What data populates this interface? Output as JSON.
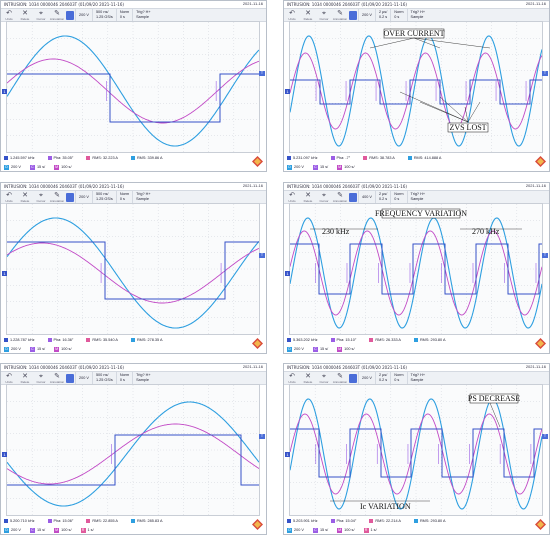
{
  "colors": {
    "ch1": "#3552c8",
    "ch2": "#c24bc6",
    "ch3": "#2e9fe0",
    "math": "#9b5de5",
    "ref": "#e05a9c",
    "accent": "#4a6dd8"
  },
  "toolbar": {
    "undo_label": "Undo",
    "delete_label": "Delete",
    "cursor_label": "Cursor",
    "annot_label": "Annotation"
  },
  "panels": [
    {
      "id": "p1",
      "titlebar": "INTRUSION: 1034 0000046 204603T (01/09/20 2021-11-16)",
      "timestamp": "2021-11-16",
      "ch_box": "200 V",
      "t_top": "500 ns/",
      "t_bot": "1.25 GS/s",
      "delay_top": "Norm",
      "delay_bot": "0 s",
      "trig_top": "Trig? H+",
      "trig_bot": "Sample",
      "measurements": [
        {
          "label": "1.245.597 kHz",
          "color": "#3552c8"
        },
        {
          "label": "Pha: 35.05°",
          "color": "#9b5de5"
        },
        {
          "label": "RMS: 32.223 A",
          "color": "#e05a9c"
        },
        {
          "label": "RMS: 339.86 A",
          "color": "#2e9fe0"
        }
      ],
      "channels": [
        {
          "id": "D",
          "value": "200 V",
          "color": "#2e9fe0"
        },
        {
          "id": "C",
          "value": "15 s/",
          "color": "#9b5de5"
        },
        {
          "id": "M",
          "value": "100 s/",
          "color": "#c24bc6"
        }
      ],
      "annotations": []
    },
    {
      "id": "p2",
      "titlebar": "INTRUSION: 1034 0000046 204603T (01/09/20 2021-11-16)",
      "timestamp": "2021-11-16",
      "ch_box": "200 V",
      "t_top": "2 µs/",
      "t_bot": "0.2 s",
      "delay_top": "Norm",
      "delay_bot": "0 s",
      "trig_top": "Trig? H+",
      "trig_bot": "Sample",
      "measurements": [
        {
          "label": "5.231.097 kHz",
          "color": "#3552c8"
        },
        {
          "label": "Pha: -7°",
          "color": "#9b5de5"
        },
        {
          "label": "RMS: 38.783 A",
          "color": "#e05a9c"
        },
        {
          "label": "RMS: 414.888 A",
          "color": "#2e9fe0"
        }
      ],
      "channels": [
        {
          "id": "D",
          "value": "200 V",
          "color": "#2e9fe0"
        },
        {
          "id": "C",
          "value": "15 s/",
          "color": "#9b5de5"
        },
        {
          "id": "M",
          "value": "100 s/",
          "color": "#c24bc6"
        }
      ],
      "annotations": [
        "OVER CURRENT",
        "ZVS LOST"
      ]
    },
    {
      "id": "p3",
      "titlebar": "INTRUSION: 1034 0000046 204603T (01/09/20 2021-11-16)",
      "timestamp": "2021-11-16",
      "ch_box": "200 V",
      "t_top": "500 ns/",
      "t_bot": "1.25 GS/s",
      "delay_top": "Norm",
      "delay_bot": "0 s",
      "trig_top": "Trig? H+",
      "trig_bot": "Sample",
      "measurements": [
        {
          "label": "1.228.787 kHz",
          "color": "#3552c8"
        },
        {
          "label": "Pha: 16.36°",
          "color": "#9b5de5"
        },
        {
          "label": "RMS: 35.540 A",
          "color": "#e05a9c"
        },
        {
          "label": "RMS: 278.35 A",
          "color": "#2e9fe0"
        }
      ],
      "channels": [
        {
          "id": "D",
          "value": "200 V",
          "color": "#2e9fe0"
        },
        {
          "id": "C",
          "value": "15 s/",
          "color": "#9b5de5"
        },
        {
          "id": "M",
          "value": "100 s/",
          "color": "#c24bc6"
        }
      ],
      "annotations": []
    },
    {
      "id": "p4",
      "titlebar": "INTRUSION: 1034 0000046 204603T (01/09/20 2021-11-16)",
      "timestamp": "2021-11-16",
      "ch_box": "400 V",
      "t_top": "2 µs/",
      "t_bot": "0.2 s",
      "delay_top": "Norm",
      "delay_bot": "0 s",
      "trig_top": "Trig? H+",
      "trig_bot": "Sample",
      "measurements": [
        {
          "label": "5.363.202 kHz",
          "color": "#3552c8"
        },
        {
          "label": "Pha: 15.10°",
          "color": "#9b5de5"
        },
        {
          "label": "RMS: 26.333 A",
          "color": "#e05a9c"
        },
        {
          "label": "RMS: 293.80 A",
          "color": "#2e9fe0"
        }
      ],
      "channels": [
        {
          "id": "D",
          "value": "200 V",
          "color": "#2e9fe0"
        },
        {
          "id": "C",
          "value": "15 s/",
          "color": "#9b5de5"
        },
        {
          "id": "M",
          "value": "100 s/",
          "color": "#c24bc6"
        }
      ],
      "annotations": [
        "FREQUENCY VARIATION",
        "230 kHz",
        "270 kHz"
      ]
    },
    {
      "id": "p5",
      "titlebar": "INTRUSION: 1034 0000046 204603T (01/09/20 2021-11-16)",
      "timestamp": "2021-11-16",
      "ch_box": "200 V",
      "t_top": "500 ns/",
      "t_bot": "1.25 GS/s",
      "delay_top": "Norm",
      "delay_bot": "0 s",
      "trig_top": "Trig? H+",
      "trig_bot": "Sample",
      "measurements": [
        {
          "label": "5.200.710 kHz",
          "color": "#3552c8"
        },
        {
          "label": "Pha: 15.06°",
          "color": "#9b5de5"
        },
        {
          "label": "RMS: 22.855 A",
          "color": "#e05a9c"
        },
        {
          "label": "RMS: 285.83 A",
          "color": "#2e9fe0"
        }
      ],
      "channels": [
        {
          "id": "D",
          "value": "200 V",
          "color": "#2e9fe0"
        },
        {
          "id": "C",
          "value": "15 s/",
          "color": "#9b5de5"
        },
        {
          "id": "M",
          "value": "100 s/",
          "color": "#c24bc6"
        },
        {
          "id": "R",
          "value": "1 s/",
          "color": "#e05a9c"
        }
      ],
      "annotations": []
    },
    {
      "id": "p6",
      "titlebar": "INTRUSION: 1034 0000046 204603T (01/09/20 2021-11-16)",
      "timestamp": "2021-11-16",
      "ch_box": "200 V",
      "t_top": "2 µs/",
      "t_bot": "0.2 s",
      "delay_top": "Norm",
      "delay_bot": "0 s",
      "trig_top": "Trig? H+",
      "trig_bot": "Sample",
      "measurements": [
        {
          "label": "5.203.901 kHz",
          "color": "#3552c8"
        },
        {
          "label": "Pha: 15.04°",
          "color": "#9b5de5"
        },
        {
          "label": "RMS: 22.214 A",
          "color": "#e05a9c"
        },
        {
          "label": "RMS: 293.80 A",
          "color": "#2e9fe0"
        }
      ],
      "channels": [
        {
          "id": "D",
          "value": "200 V",
          "color": "#2e9fe0"
        },
        {
          "id": "C",
          "value": "15 s/",
          "color": "#9b5de5"
        },
        {
          "id": "M",
          "value": "100 s/",
          "color": "#c24bc6"
        },
        {
          "id": "R",
          "value": "1 s/",
          "color": "#e05a9c"
        }
      ],
      "annotations": [
        "PS DECREASE",
        "Ic VARIATION"
      ]
    }
  ]
}
